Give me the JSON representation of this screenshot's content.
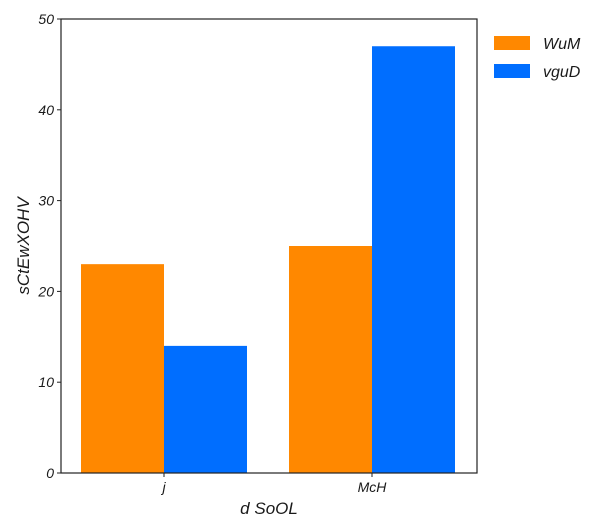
{
  "chart_data": {
    "type": "bar",
    "categories": [
      "j",
      "McH"
    ],
    "series": [
      {
        "name": "WuM",
        "values": [
          23,
          25
        ],
        "color": "#ff8800"
      },
      {
        "name": "vguD",
        "values": [
          14,
          47
        ],
        "color": "#006eff"
      }
    ],
    "title": "",
    "xlabel": "d SoOL",
    "ylabel": "sCtEwXOHV",
    "ylim": [
      0,
      50
    ],
    "yticks": [
      0,
      10,
      20,
      30,
      40,
      50
    ],
    "grid": false,
    "legend": "outside-top-right"
  }
}
